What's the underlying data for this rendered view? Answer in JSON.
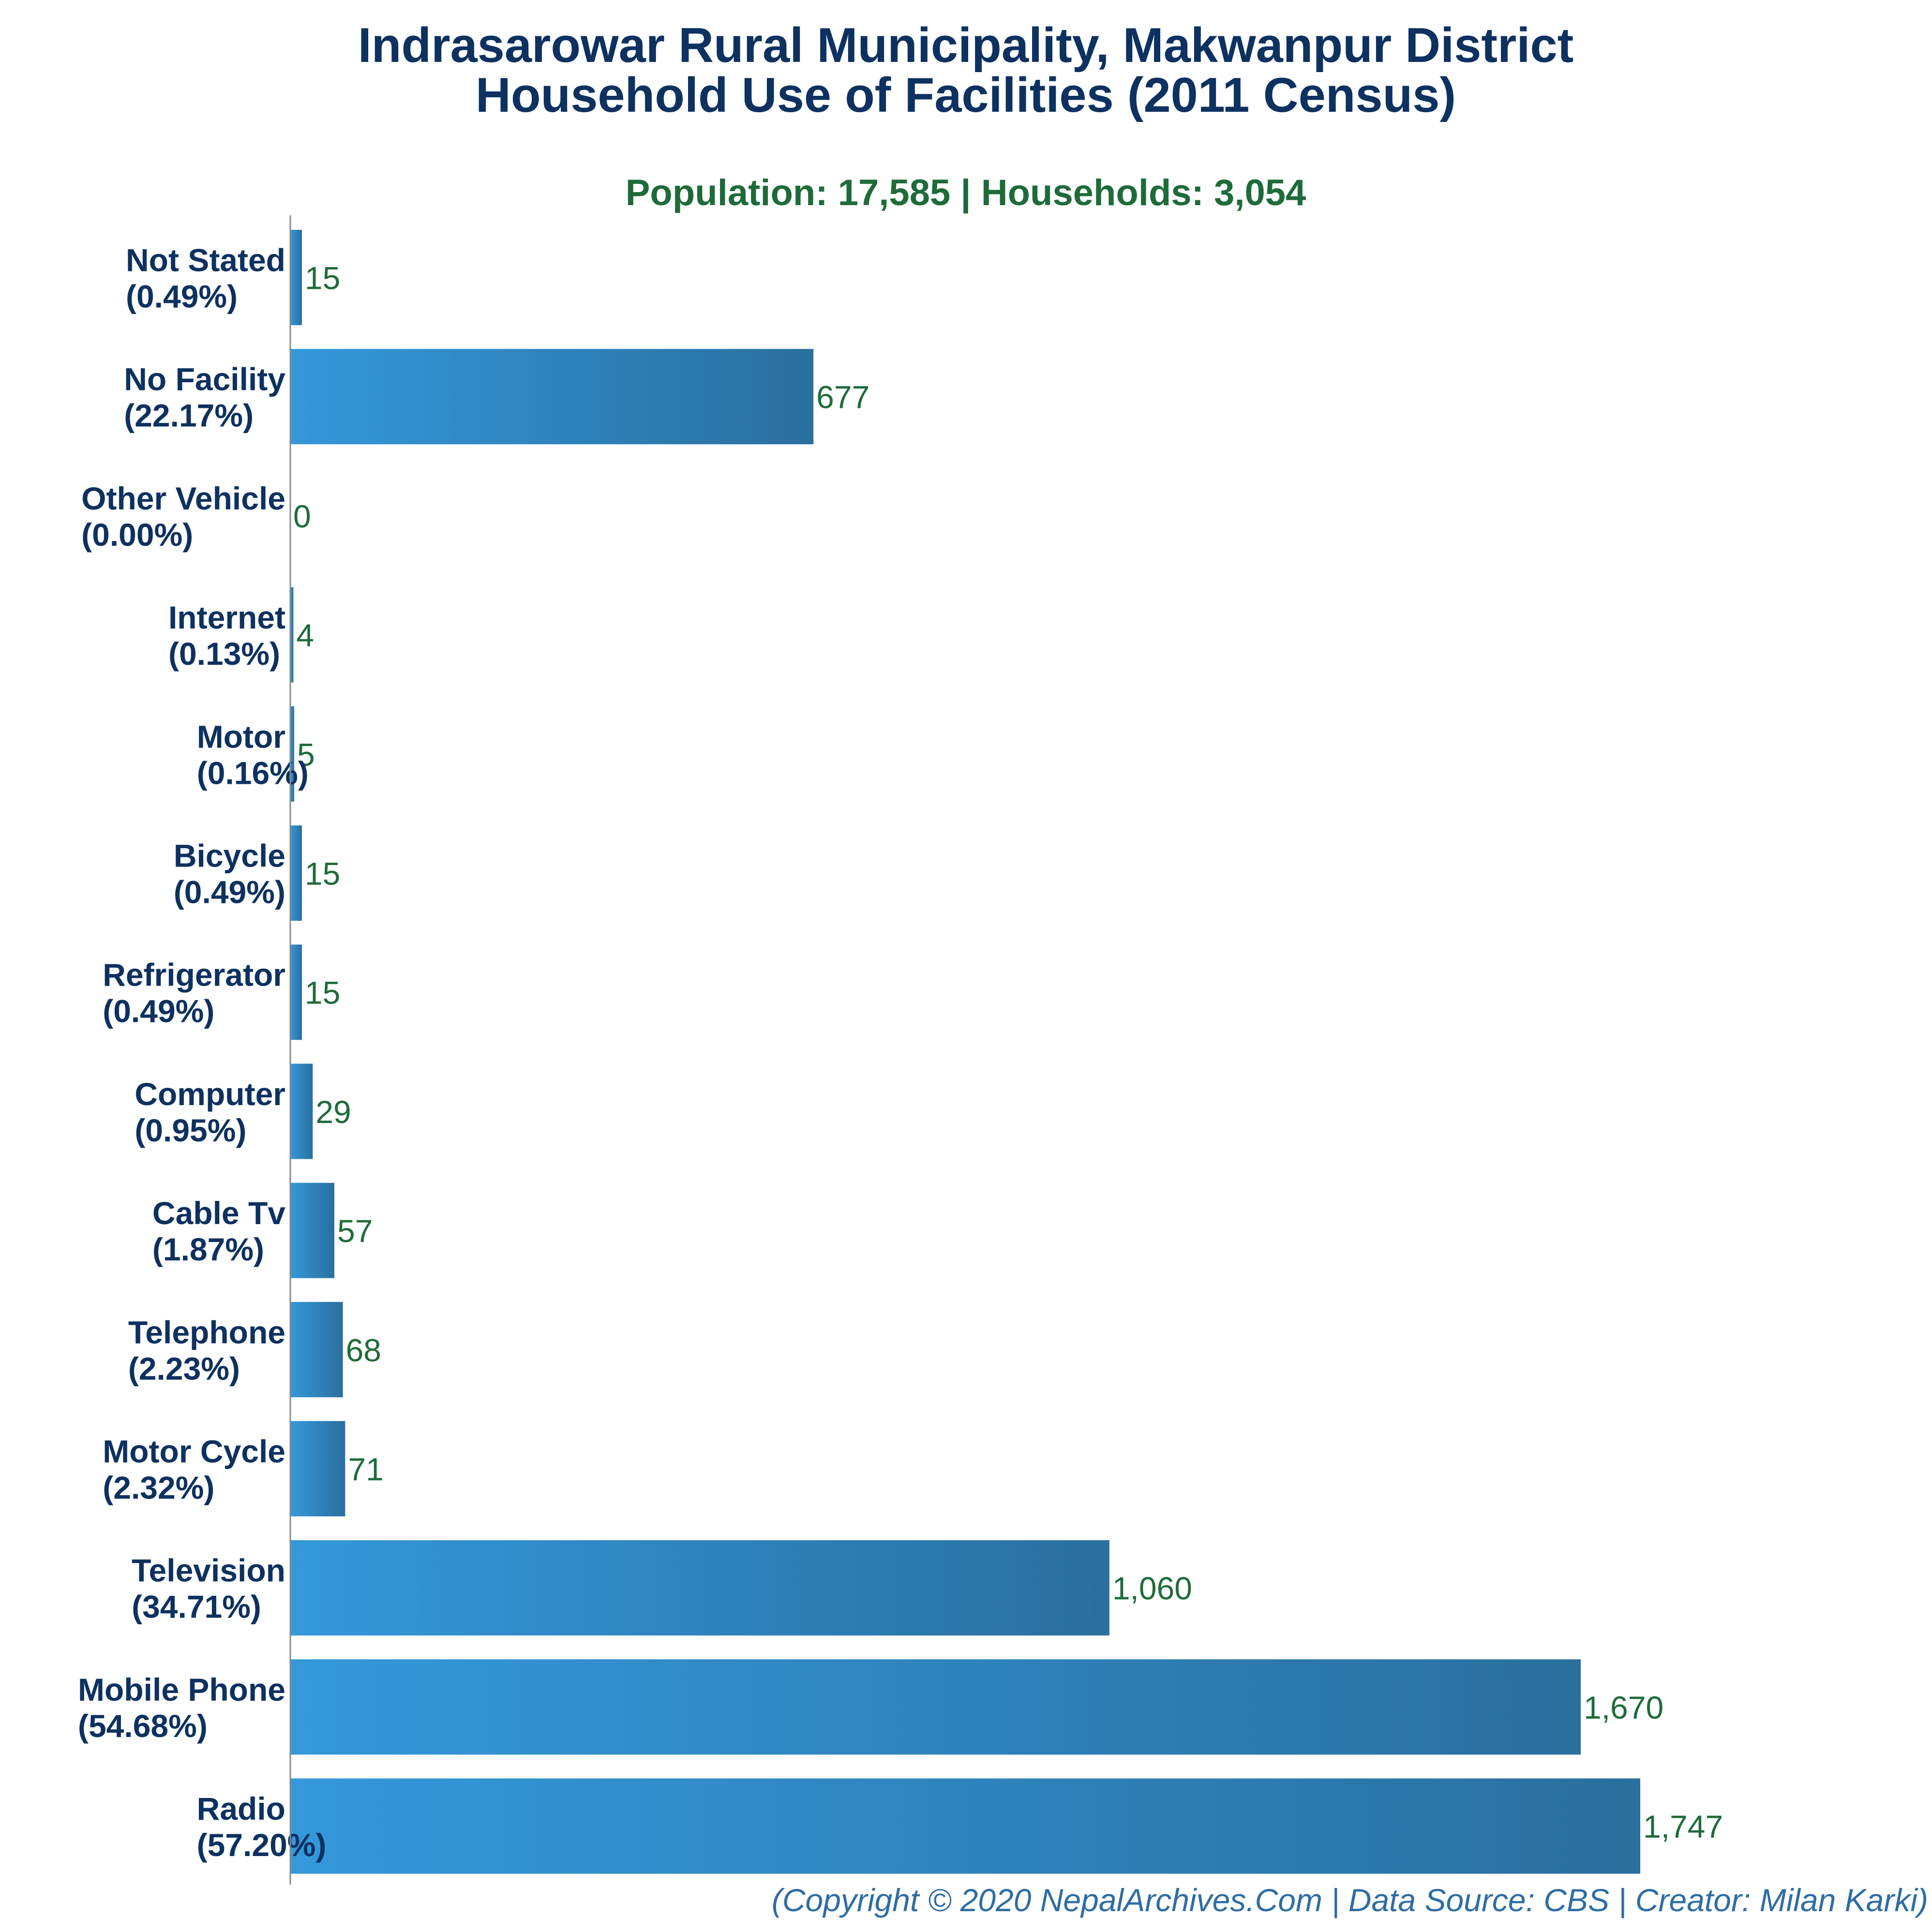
{
  "chart_data": {
    "type": "bar",
    "orientation": "horizontal",
    "title_lines": [
      "Indrasarowar Rural Municipality, Makwanpur District",
      "Household Use of Facilities (2011 Census)"
    ],
    "subtitle": "Population: 17,585 | Households: 3,054",
    "footer": "(Copyright © 2020 NepalArchives.Com | Data Source: CBS | Creator: Milan Karki)",
    "categories": [
      {
        "name": "Not Stated",
        "percent": "(0.49%)",
        "value": 15,
        "value_label": "15"
      },
      {
        "name": "No Facility",
        "percent": "(22.17%)",
        "value": 677,
        "value_label": "677"
      },
      {
        "name": "Other Vehicle",
        "percent": "(0.00%)",
        "value": 0,
        "value_label": "0"
      },
      {
        "name": "Internet",
        "percent": "(0.13%)",
        "value": 4,
        "value_label": "4"
      },
      {
        "name": "Motor",
        "percent": "(0.16%)",
        "value": 5,
        "value_label": "5"
      },
      {
        "name": "Bicycle",
        "percent": "(0.49%)",
        "value": 15,
        "value_label": "15"
      },
      {
        "name": "Refrigerator",
        "percent": "(0.49%)",
        "value": 15,
        "value_label": "15"
      },
      {
        "name": "Computer",
        "percent": "(0.95%)",
        "value": 29,
        "value_label": "29"
      },
      {
        "name": "Cable Tv",
        "percent": "(1.87%)",
        "value": 57,
        "value_label": "57"
      },
      {
        "name": "Telephone",
        "percent": "(2.23%)",
        "value": 68,
        "value_label": "68"
      },
      {
        "name": "Motor Cycle",
        "percent": "(2.32%)",
        "value": 71,
        "value_label": "71"
      },
      {
        "name": "Television",
        "percent": "(34.71%)",
        "value": 1060,
        "value_label": "1,060"
      },
      {
        "name": "Mobile Phone",
        "percent": "(54.68%)",
        "value": 1670,
        "value_label": "1,670"
      },
      {
        "name": "Radio",
        "percent": "(57.20%)",
        "value": 1747,
        "value_label": "1,747"
      }
    ],
    "xlim": [
      0,
      1747
    ],
    "grid": false,
    "legend": "none",
    "colors": {
      "title": "#0d3160",
      "subtitle": "#1e6b3a",
      "category_label": "#0d3160",
      "value_label": "#1e6b3a",
      "footer": "#2e6da4",
      "bar_start": "#3498db",
      "bar_end": "#2a6f9e",
      "axis": "#888888"
    }
  }
}
